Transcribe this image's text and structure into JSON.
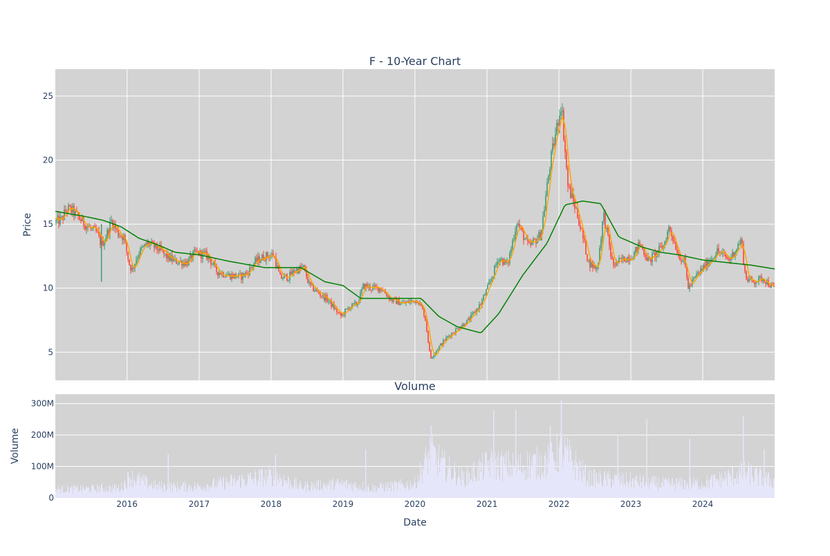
{
  "chart_data": [
    {
      "type": "candlestick",
      "title": "F - 10-Year Chart",
      "xlabel": "",
      "ylabel": "Price",
      "ylim": [
        2.8,
        27.1
      ],
      "yticks": [
        5,
        10,
        15,
        20,
        25
      ],
      "xlim": [
        "2015-01-02",
        "2024-12-31"
      ],
      "grid": true,
      "colors": {
        "background": "#d3d3d3",
        "increasing": "#3d9970",
        "decreasing": "#ff4136",
        "ma_short": "#ffa500",
        "ma_long": "#008000",
        "grid": "#ffffff"
      },
      "series": [
        {
          "kind": "candlestick",
          "values": "OHLC daily prices (approximated by price_path)"
        },
        {
          "kind": "line",
          "color": "#ffa500",
          "values": "short moving average"
        },
        {
          "kind": "line",
          "color": "#008000",
          "values": "long moving average"
        }
      ],
      "price_path": [
        [
          "2015-01-02",
          15.2
        ],
        [
          "2015-02-01",
          15.3
        ],
        [
          "2015-03-01",
          16.2
        ],
        [
          "2015-04-01",
          16.0
        ],
        [
          "2015-05-01",
          15.5
        ],
        [
          "2015-06-01",
          15.0
        ],
        [
          "2015-07-01",
          14.6
        ],
        [
          "2015-08-01",
          14.3
        ],
        [
          "2015-08-24",
          13.4
        ],
        [
          "2015-09-15",
          14.0
        ],
        [
          "2015-10-15",
          15.3
        ],
        [
          "2015-11-15",
          14.3
        ],
        [
          "2015-12-15",
          14.0
        ],
        [
          "2016-01-10",
          12.0
        ],
        [
          "2016-01-25",
          11.4
        ],
        [
          "2016-03-01",
          12.8
        ],
        [
          "2016-04-15",
          13.5
        ],
        [
          "2016-06-15",
          13.0
        ],
        [
          "2016-07-15",
          12.5
        ],
        [
          "2016-09-01",
          12.1
        ],
        [
          "2016-11-01",
          12.0
        ],
        [
          "2016-12-15",
          12.8
        ],
        [
          "2017-02-15",
          12.5
        ],
        [
          "2017-04-01",
          11.3
        ],
        [
          "2017-06-01",
          11.0
        ],
        [
          "2017-08-01",
          10.9
        ],
        [
          "2017-09-01",
          11.2
        ],
        [
          "2017-10-15",
          12.1
        ],
        [
          "2017-12-01",
          12.5
        ],
        [
          "2018-01-15",
          12.6
        ],
        [
          "2018-02-15",
          10.8
        ],
        [
          "2018-04-01",
          10.9
        ],
        [
          "2018-05-01",
          11.4
        ],
        [
          "2018-06-15",
          11.6
        ],
        [
          "2018-07-15",
          10.2
        ],
        [
          "2018-09-01",
          9.6
        ],
        [
          "2018-10-15",
          9.1
        ],
        [
          "2018-12-20",
          7.8
        ],
        [
          "2019-02-01",
          8.5
        ],
        [
          "2019-03-15",
          8.8
        ],
        [
          "2019-04-15",
          10.2
        ],
        [
          "2019-06-01",
          10.0
        ],
        [
          "2019-07-15",
          10.0
        ],
        [
          "2019-09-01",
          9.1
        ],
        [
          "2019-11-01",
          8.8
        ],
        [
          "2020-01-15",
          9.1
        ],
        [
          "2020-02-20",
          7.9
        ],
        [
          "2020-03-20",
          4.5
        ],
        [
          "2020-05-01",
          5.4
        ],
        [
          "2020-06-15",
          6.2
        ],
        [
          "2020-08-01",
          6.8
        ],
        [
          "2020-10-01",
          7.5
        ],
        [
          "2020-12-01",
          8.8
        ],
        [
          "2021-01-15",
          10.4
        ],
        [
          "2021-03-01",
          12.4
        ],
        [
          "2021-04-15",
          11.8
        ],
        [
          "2021-06-01",
          15.2
        ],
        [
          "2021-08-01",
          13.2
        ],
        [
          "2021-10-01",
          14.2
        ],
        [
          "2021-11-15",
          19.5
        ],
        [
          "2022-01-13",
          24.5
        ],
        [
          "2022-02-15",
          18.0
        ],
        [
          "2022-04-01",
          16.0
        ],
        [
          "2022-06-01",
          12.0
        ],
        [
          "2022-07-15",
          11.5
        ],
        [
          "2022-08-15",
          15.8
        ],
        [
          "2022-10-01",
          11.8
        ],
        [
          "2022-12-01",
          12.3
        ],
        [
          "2023-01-15",
          12.6
        ],
        [
          "2023-02-15",
          13.5
        ],
        [
          "2023-04-01",
          12.1
        ],
        [
          "2023-06-15",
          13.3
        ],
        [
          "2023-07-15",
          14.8
        ],
        [
          "2023-09-01",
          12.6
        ],
        [
          "2023-10-01",
          12.0
        ],
        [
          "2023-10-20",
          10.0
        ],
        [
          "2023-12-01",
          11.0
        ],
        [
          "2024-01-15",
          11.8
        ],
        [
          "2024-03-15",
          12.9
        ],
        [
          "2024-05-15",
          12.2
        ],
        [
          "2024-07-15",
          13.8
        ],
        [
          "2024-08-05",
          10.8
        ],
        [
          "2024-09-15",
          10.5
        ],
        [
          "2024-11-01",
          10.8
        ],
        [
          "2024-12-31",
          9.9
        ]
      ],
      "ma_long_path": [
        [
          "2015-01-02",
          16.0
        ],
        [
          "2015-06-01",
          15.6
        ],
        [
          "2015-09-01",
          15.3
        ],
        [
          "2015-12-01",
          14.8
        ],
        [
          "2016-03-01",
          13.9
        ],
        [
          "2016-06-01",
          13.4
        ],
        [
          "2016-09-01",
          12.8
        ],
        [
          "2017-01-01",
          12.6
        ],
        [
          "2017-06-01",
          12.1
        ],
        [
          "2017-12-01",
          11.6
        ],
        [
          "2018-06-01",
          11.6
        ],
        [
          "2018-10-01",
          10.5
        ],
        [
          "2019-01-01",
          10.2
        ],
        [
          "2019-04-01",
          9.2
        ],
        [
          "2019-09-01",
          9.2
        ],
        [
          "2020-02-01",
          9.2
        ],
        [
          "2020-05-01",
          7.8
        ],
        [
          "2020-08-01",
          7.0
        ],
        [
          "2020-12-01",
          6.5
        ],
        [
          "2021-03-01",
          8.0
        ],
        [
          "2021-07-01",
          11.0
        ],
        [
          "2021-11-01",
          13.5
        ],
        [
          "2022-02-01",
          16.5
        ],
        [
          "2022-05-01",
          16.8
        ],
        [
          "2022-08-01",
          16.6
        ],
        [
          "2022-11-01",
          14.0
        ],
        [
          "2023-03-01",
          13.2
        ],
        [
          "2023-06-01",
          12.8
        ],
        [
          "2023-09-01",
          12.6
        ],
        [
          "2024-01-01",
          12.2
        ],
        [
          "2024-05-01",
          12.0
        ],
        [
          "2024-09-01",
          11.8
        ],
        [
          "2024-12-31",
          11.5
        ]
      ]
    },
    {
      "type": "bar",
      "title": "Volume",
      "xlabel": "Date",
      "ylabel": "Volume",
      "ylim": [
        0,
        330000000
      ],
      "yticks": [
        0,
        100000000,
        200000000,
        300000000
      ],
      "ytick_labels": [
        "0",
        "100M",
        "200M",
        "300M"
      ],
      "xtick_labels": [
        "2016",
        "2017",
        "2018",
        "2019",
        "2020",
        "2021",
        "2022",
        "2023",
        "2024"
      ],
      "bar_color": "#e6e6fa",
      "volume_path": [
        [
          "2015-01-02",
          30
        ],
        [
          "2015-12-01",
          35
        ],
        [
          "2016-01-15",
          75
        ],
        [
          "2016-06-01",
          40
        ],
        [
          "2017-01-01",
          40
        ],
        [
          "2018-01-15",
          80
        ],
        [
          "2018-06-01",
          40
        ],
        [
          "2019-01-01",
          50
        ],
        [
          "2019-06-01",
          35
        ],
        [
          "2020-01-01",
          50
        ],
        [
          "2020-03-20",
          160
        ],
        [
          "2020-06-01",
          110
        ],
        [
          "2020-09-01",
          70
        ],
        [
          "2021-01-15",
          120
        ],
        [
          "2021-06-01",
          110
        ],
        [
          "2021-11-15",
          130
        ],
        [
          "2022-01-15",
          170
        ],
        [
          "2022-06-01",
          70
        ],
        [
          "2023-01-01",
          60
        ],
        [
          "2023-06-01",
          50
        ],
        [
          "2024-01-01",
          50
        ],
        [
          "2024-08-05",
          90
        ],
        [
          "2024-12-31",
          55
        ]
      ],
      "volume_spikes": [
        [
          "2016-07-28",
          140
        ],
        [
          "2018-01-24",
          138
        ],
        [
          "2019-04-26",
          155
        ],
        [
          "2020-03-23",
          230
        ],
        [
          "2021-02-04",
          280
        ],
        [
          "2021-05-27",
          280
        ],
        [
          "2021-11-18",
          230
        ],
        [
          "2022-01-13",
          310
        ],
        [
          "2022-10-27",
          200
        ],
        [
          "2023-03-23",
          250
        ],
        [
          "2023-10-27",
          190
        ],
        [
          "2024-07-25",
          260
        ],
        [
          "2024-11-08",
          155
        ]
      ]
    }
  ]
}
